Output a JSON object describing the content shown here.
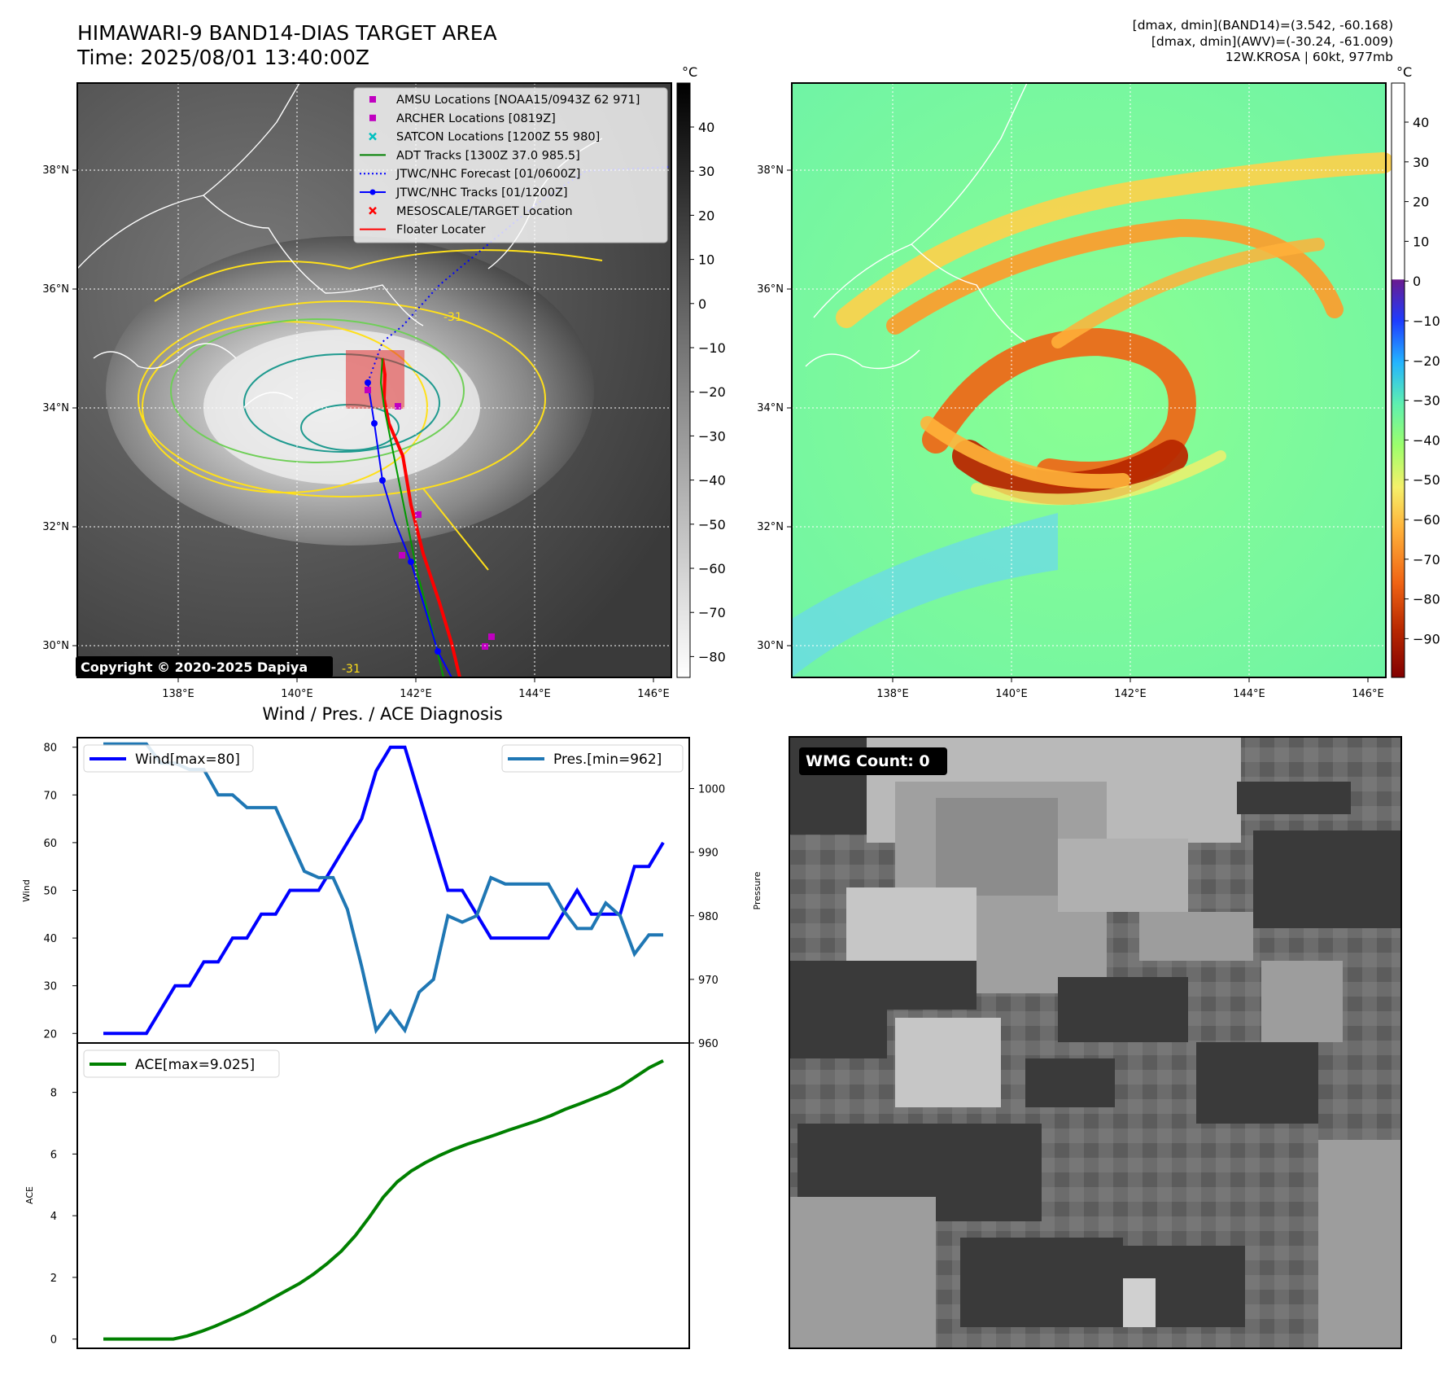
{
  "header": {
    "title_line1": "HIMAWARI-9 BAND14-DIAS TARGET AREA",
    "title_line2": "Time: 2025/08/01 13:40:00Z",
    "info_line1": "[dmax, dmin](BAND14)=(3.542, -60.168)",
    "info_line2": "[dmax, dmin](AWV)=(-30.24, -61.009)",
    "info_line3": "12W.KROSA | 60kt, 977mb"
  },
  "map": {
    "lon_ticks": [
      "138°E",
      "140°E",
      "142°E",
      "144°E",
      "146°E"
    ],
    "lat_ticks": [
      "38°N",
      "36°N",
      "34°N",
      "32°N",
      "30°N"
    ],
    "copyright": "Copyright © 2020-2025 Dapiya",
    "contour_label": "-31",
    "legend": [
      {
        "label": "AMSU Locations [NOAA15/0943Z 62 971]",
        "color": "#c000c0",
        "marker": "square"
      },
      {
        "label": "ARCHER Locations [0819Z]",
        "color": "#c000c0",
        "marker": "square"
      },
      {
        "label": "SATCON Locations [1200Z 55 980]",
        "color": "#00c0c0",
        "marker": "x"
      },
      {
        "label": "ADT Tracks [1300Z 37.0 985.5]",
        "color": "#008000",
        "marker": "line"
      },
      {
        "label": "JTWC/NHC Forecast [01/0600Z]",
        "color": "#0000ff",
        "marker": "dotted"
      },
      {
        "label": "JTWC/NHC Tracks [01/1200Z]",
        "color": "#0000ff",
        "marker": "dotline"
      },
      {
        "label": "MESOSCALE/TARGET Location",
        "color": "#ff0000",
        "marker": "x"
      },
      {
        "label": "Floater Locater",
        "color": "#ff0000",
        "marker": "line"
      }
    ]
  },
  "colorbar_ir": {
    "unit": "°C",
    "ticks": [
      "40",
      "30",
      "20",
      "10",
      "0",
      "−10",
      "−20",
      "−30",
      "−40",
      "−50",
      "−60",
      "−70",
      "−80"
    ]
  },
  "colorbar_awv": {
    "unit": "°C",
    "ticks": [
      "40",
      "30",
      "20",
      "10",
      "0",
      "−10",
      "−20",
      "−30",
      "−40",
      "−50",
      "−60",
      "−70",
      "−80",
      "−90"
    ]
  },
  "wmg": {
    "label": "WMG Count: 0"
  },
  "chart_data": [
    {
      "type": "line",
      "title": "Wind / Pres. / ACE Diagnosis",
      "ylabel": "Wind",
      "y2label": "Pressure",
      "ylim": [
        18,
        82
      ],
      "y2lim": [
        960,
        1008
      ],
      "yticks": [
        "20",
        "30",
        "40",
        "50",
        "60",
        "70",
        "80"
      ],
      "y2ticks": [
        "960",
        "970",
        "980",
        "990",
        "1000"
      ],
      "series": [
        {
          "name": "Wind[max=80]",
          "color": "#0000ff",
          "axis": "left",
          "values": [
            20,
            20,
            20,
            20,
            25,
            30,
            30,
            35,
            35,
            40,
            40,
            45,
            45,
            50,
            50,
            50,
            55,
            60,
            65,
            75,
            80,
            80,
            70,
            60,
            50,
            50,
            45,
            40,
            40,
            40,
            40,
            40,
            45,
            50,
            45,
            45,
            45,
            55,
            55,
            60
          ]
        },
        {
          "name": "Pres.[min=962]",
          "color": "#1f77b4",
          "axis": "right",
          "values": [
            1007,
            1007,
            1007,
            1007,
            1004,
            1004,
            1003,
            1003,
            999,
            999,
            997,
            997,
            997,
            992,
            987,
            986,
            986,
            981,
            972,
            962,
            965,
            962,
            968,
            970,
            980,
            979,
            980,
            986,
            985,
            985,
            985,
            985,
            981,
            978,
            978,
            982,
            980,
            974,
            977,
            977
          ]
        }
      ]
    },
    {
      "type": "line",
      "ylabel": "ACE",
      "ylim": [
        -0.3,
        9.6
      ],
      "yticks": [
        "0",
        "2",
        "4",
        "6",
        "8"
      ],
      "series": [
        {
          "name": "ACE[max=9.025]",
          "color": "#008000",
          "values": [
            0,
            0,
            0,
            0,
            0,
            0,
            0.1,
            0.25,
            0.42,
            0.62,
            0.82,
            1.05,
            1.3,
            1.55,
            1.8,
            2.1,
            2.45,
            2.85,
            3.35,
            3.95,
            4.6,
            5.1,
            5.45,
            5.72,
            5.95,
            6.15,
            6.32,
            6.47,
            6.62,
            6.78,
            6.93,
            7.08,
            7.25,
            7.45,
            7.62,
            7.8,
            7.98,
            8.2,
            8.5,
            8.8,
            9.025
          ]
        }
      ]
    }
  ]
}
